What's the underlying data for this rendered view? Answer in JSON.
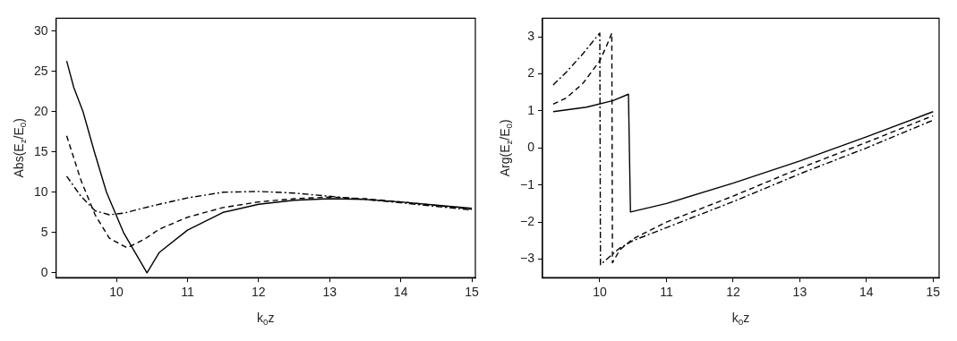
{
  "chart_data": [
    {
      "type": "line",
      "xlabel": "k$_{0}$z",
      "ylabel": "Abs(E$_{z}$/E$_{0}$)",
      "xlim": [
        9.15,
        15.05
      ],
      "ylim": [
        -0.6,
        31.6
      ],
      "xticks": [
        10,
        11,
        12,
        13,
        14,
        15
      ],
      "yticks": [
        0,
        5,
        10,
        15,
        20,
        25,
        30
      ],
      "grid": false,
      "legend": false,
      "marker": "none",
      "series": [
        {
          "color": "#000000",
          "line_style": "solid",
          "x": [
            9.3,
            9.4,
            9.53,
            9.69,
            9.86,
            10.1,
            10.43,
            10.6,
            11,
            11.5,
            12,
            12.5,
            13,
            13.5,
            14,
            14.5,
            15
          ],
          "values": [
            26.3,
            23,
            20,
            15,
            10,
            5,
            0,
            2.5,
            5.3,
            7.5,
            8.5,
            9.0,
            9.2,
            9.1,
            8.8,
            8.4,
            8.0
          ]
        },
        {
          "color": "#000000",
          "line_style": "dashed",
          "x": [
            9.3,
            9.5,
            9.7,
            9.9,
            10.15,
            10.4,
            10.6,
            11,
            11.5,
            12,
            12.5,
            13,
            13.5,
            14,
            15
          ],
          "values": [
            17,
            11.5,
            7.2,
            4.3,
            3.1,
            4.2,
            5.4,
            6.9,
            8.1,
            8.8,
            9.2,
            9.4,
            9.2,
            8.8,
            7.9
          ]
        },
        {
          "color": "#000000",
          "line_style": "dotted",
          "x": [
            9.3,
            9.5,
            9.7,
            9.9,
            10.1,
            10.5,
            11,
            11.5,
            12,
            12.5,
            13,
            13.5,
            14,
            15
          ],
          "values": [
            12,
            9.5,
            7.7,
            7.2,
            7.4,
            8.3,
            9.3,
            10.0,
            10.1,
            9.9,
            9.5,
            9.1,
            8.7,
            7.8
          ]
        }
      ]
    },
    {
      "type": "line",
      "xlabel": "k$_{0}$z",
      "ylabel": "Arg(E$_{z}$/E$_{0}$)",
      "xlim": [
        9.14,
        15.09
      ],
      "ylim": [
        -3.5,
        3.5
      ],
      "xticks": [
        10,
        11,
        12,
        13,
        14,
        15
      ],
      "yticks": [
        -3,
        -2,
        -1,
        0,
        1,
        2,
        3
      ],
      "grid": false,
      "legend": false,
      "marker": "none",
      "series": [
        {
          "color": "#000000",
          "line_style": "solid",
          "x": [
            9.3,
            9.8,
            10.2,
            10.43,
            10.46,
            11,
            12,
            13,
            14,
            15
          ],
          "values": [
            0.98,
            1.1,
            1.28,
            1.45,
            -1.73,
            -1.5,
            -0.95,
            -0.35,
            0.3,
            0.98
          ]
        },
        {
          "color": "#000000",
          "line_style": "dashed",
          "x": [
            9.3,
            9.5,
            9.75,
            10.0,
            10.1,
            10.18,
            10.19,
            10.3,
            10.5,
            11,
            12,
            13,
            14,
            15
          ],
          "values": [
            1.18,
            1.35,
            1.75,
            2.35,
            2.75,
            3.1,
            -3.1,
            -2.75,
            -2.45,
            -2.0,
            -1.3,
            -0.55,
            0.15,
            0.87
          ]
        },
        {
          "color": "#000000",
          "line_style": "dotted",
          "x": [
            9.3,
            9.5,
            9.75,
            10.0,
            10.01,
            10.3,
            10.5,
            11,
            12,
            13,
            14,
            15
          ],
          "values": [
            1.7,
            2.05,
            2.55,
            3.1,
            -3.15,
            -2.7,
            -2.5,
            -2.15,
            -1.45,
            -0.7,
            0.0,
            0.75
          ]
        }
      ]
    }
  ]
}
